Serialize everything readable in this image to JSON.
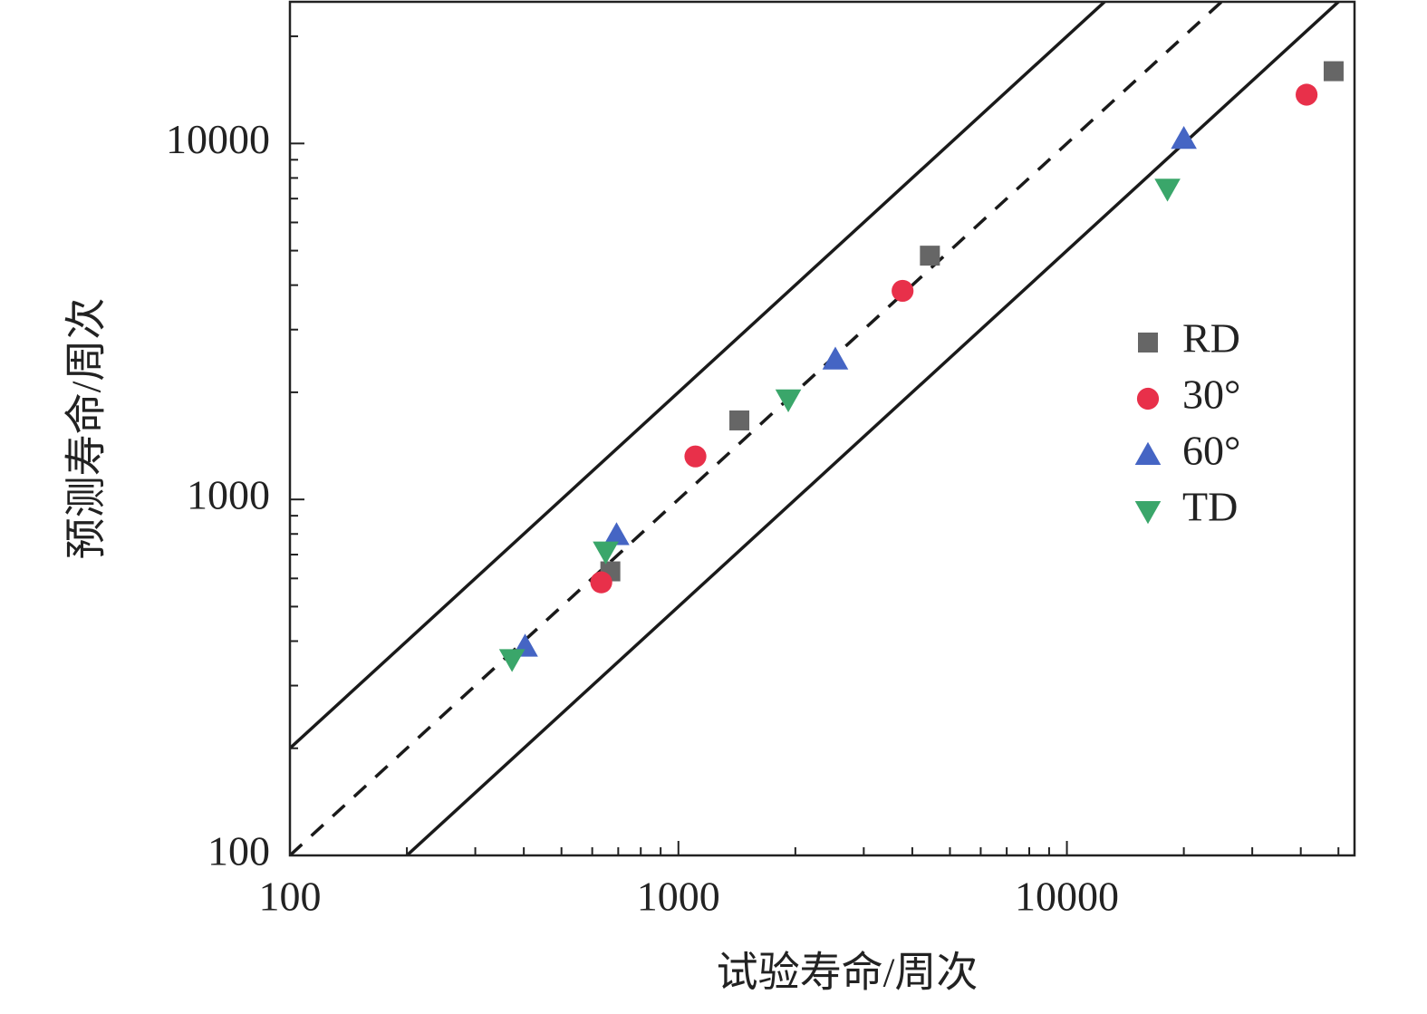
{
  "chart_data": {
    "type": "scatter",
    "x_label": "试验寿命/周次",
    "y_label": "预测寿命/周次",
    "log_x": true,
    "log_y": true,
    "minor_ticks": true,
    "xlim": [
      100,
      55000
    ],
    "ylim": [
      100,
      25000
    ],
    "xticks": [
      100,
      1000,
      10000
    ],
    "yticks": [
      100,
      1000,
      10000
    ],
    "legend_position": "right",
    "reference_lines": [
      {
        "factor": 1,
        "style": "dashed"
      },
      {
        "factor": 2,
        "style": "solid"
      },
      {
        "factor": 0.5,
        "style": "solid"
      }
    ],
    "series": [
      {
        "name": "RD",
        "color": "#666666",
        "marker": "square",
        "x": [
          668,
          1435,
          4440,
          48600
        ],
        "values": [
          628,
          1667,
          4840,
          15960
        ]
      },
      {
        "name": "30°",
        "color": "#e8304a",
        "marker": "circle",
        "x": [
          633,
          1106,
          3776,
          41400
        ],
        "values": [
          585,
          1321,
          3855,
          13710
        ]
      },
      {
        "name": "60°",
        "color": "#4565c4",
        "marker": "triangle-up",
        "x": [
          403,
          693,
          2535,
          20000
        ],
        "values": [
          386,
          794,
          2472,
          10300
        ]
      },
      {
        "name": "TD",
        "color": "#3aa66a",
        "marker": "triangle-down",
        "x": [
          373,
          650,
          1918,
          18150
        ],
        "values": [
          356,
          714,
          1910,
          7465
        ]
      }
    ]
  }
}
